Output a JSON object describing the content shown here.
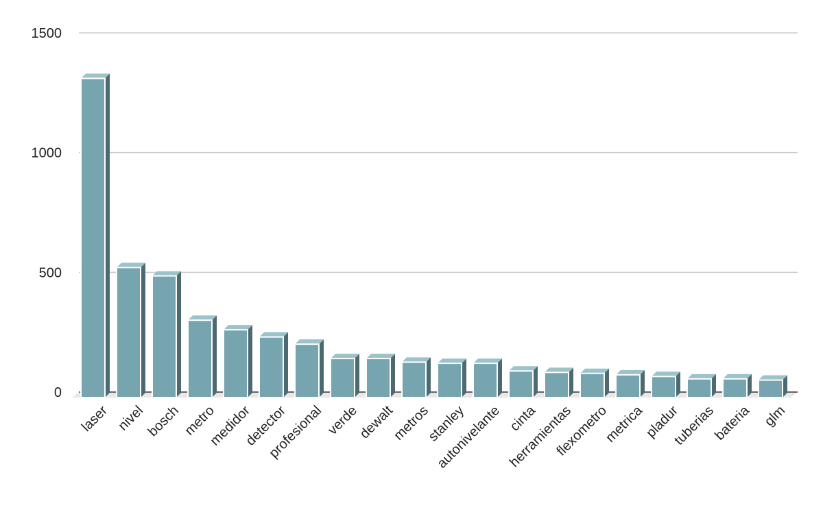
{
  "chart_data": {
    "type": "bar",
    "title": "",
    "xlabel": "",
    "ylabel": "",
    "ylim": [
      0,
      1500
    ],
    "yticks": [
      0,
      500,
      1000,
      1500
    ],
    "grid": true,
    "legend": "none",
    "categories": [
      "laser",
      "nivel",
      "bosch",
      "metro",
      "medidor",
      "detector",
      "profesional",
      "verde",
      "dewalt",
      "metros",
      "stanley",
      "autonivelante",
      "cinta",
      "herramientas",
      "flexometro",
      "metrica",
      "pladur",
      "tuberias",
      "bateria",
      "glm"
    ],
    "values": [
      1310,
      520,
      485,
      300,
      260,
      230,
      200,
      140,
      140,
      125,
      120,
      120,
      88,
      82,
      78,
      72,
      65,
      55,
      55,
      50
    ],
    "colors": {
      "bar_front": "#76a5af",
      "bar_side": "#4d6a70",
      "bar_top": "#9cc2ca",
      "bar_edge": "#ffffff",
      "grid": "#cccccc",
      "axis": "#333333",
      "floor": "#e8e8e8"
    }
  }
}
